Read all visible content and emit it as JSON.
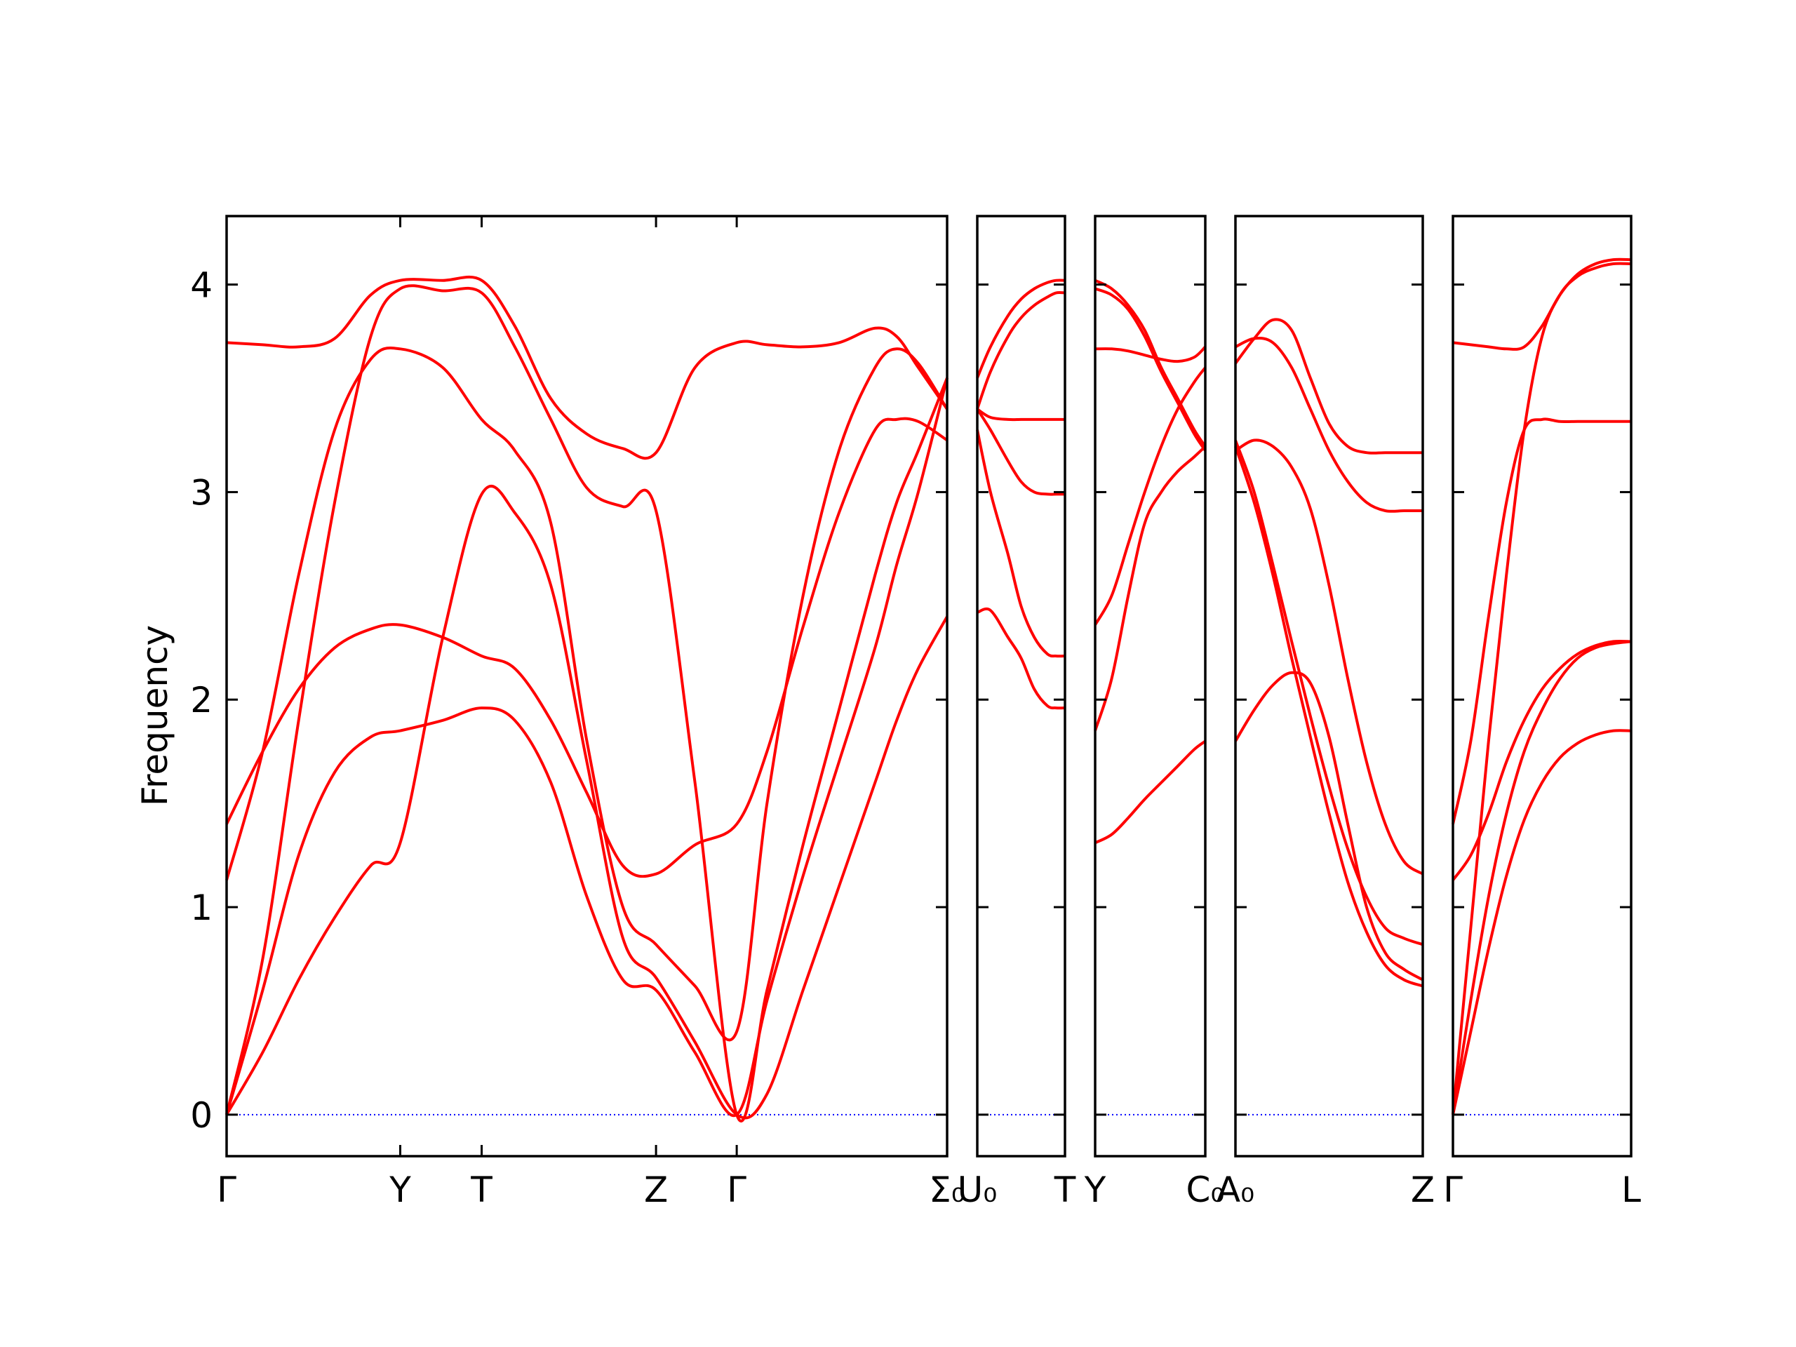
{
  "chart_data": {
    "type": "line",
    "ylabel": "Frequency",
    "ylim": [
      -0.2,
      4.33
    ],
    "yticks": [
      0,
      1,
      2,
      3,
      4
    ],
    "grid": false,
    "line_color": "#ff0000",
    "zero_line_color": "#0000ff",
    "panels": [
      {
        "xlim": [
          0,
          1
        ],
        "xticks": [
          {
            "x": 0,
            "label": "Γ"
          },
          {
            "x": 0.241,
            "label": "Y"
          },
          {
            "x": 0.354,
            "label": "T"
          },
          {
            "x": 0.596,
            "label": "Z"
          },
          {
            "x": 0.708,
            "label": "Γ"
          },
          {
            "x": 1,
            "label": "Σ₀"
          }
        ],
        "series": [
          {
            "x": [
              0,
              0.05,
              0.1,
              0.15,
              0.2,
              0.241,
              0.3,
              0.354,
              0.4,
              0.45,
              0.5,
              0.55,
              0.596,
              0.65,
              0.708,
              0.75,
              0.8,
              0.85,
              0.9,
              0.93,
              0.96,
              1
            ],
            "y": [
              3.72,
              3.71,
              3.7,
              3.74,
              3.95,
              4.02,
              4.02,
              4.02,
              3.8,
              3.45,
              3.28,
              3.21,
              3.19,
              3.6,
              3.72,
              3.71,
              3.7,
              3.72,
              3.79,
              3.75,
              3.6,
              3.4
            ]
          },
          {
            "x": [
              0,
              0.05,
              0.1,
              0.15,
              0.2,
              0.241,
              0.3,
              0.354,
              0.4,
              0.45,
              0.5,
              0.55,
              0.596,
              0.65,
              0.708,
              0.75,
              0.8,
              0.85,
              0.9,
              0.93,
              0.96,
              1
            ],
            "y": [
              0,
              0.75,
              1.9,
              2.95,
              3.75,
              3.98,
              3.97,
              3.96,
              3.7,
              3.35,
              3.02,
              2.93,
              2.91,
              1.6,
              0,
              0.6,
              1.3,
              1.95,
              2.6,
              2.95,
              3.2,
              3.55
            ]
          },
          {
            "x": [
              0,
              0.05,
              0.1,
              0.15,
              0.2,
              0.241,
              0.3,
              0.354,
              0.4,
              0.45,
              0.5,
              0.55,
              0.596,
              0.65,
              0.708,
              0.75,
              0.8,
              0.85,
              0.9,
              0.93,
              0.96,
              1
            ],
            "y": [
              1.13,
              1.75,
              2.6,
              3.3,
              3.64,
              3.69,
              3.6,
              3.35,
              3.2,
              2.85,
              1.8,
              1.0,
              0.82,
              0.62,
              0.4,
              1.5,
              2.5,
              3.2,
              3.6,
              3.69,
              3.62,
              3.4
            ]
          },
          {
            "x": [
              0,
              0.05,
              0.1,
              0.15,
              0.2,
              0.241,
              0.3,
              0.354,
              0.4,
              0.45,
              0.5,
              0.55,
              0.596,
              0.65,
              0.708,
              0.75,
              0.8,
              0.85,
              0.9,
              0.93,
              0.96,
              1
            ],
            "y": [
              1.4,
              1.75,
              2.05,
              2.25,
              2.34,
              2.36,
              2.3,
              2.21,
              2.15,
              1.9,
              1.55,
              1.2,
              1.16,
              1.3,
              1.4,
              1.75,
              2.35,
              2.9,
              3.3,
              3.35,
              3.34,
              3.25
            ]
          },
          {
            "x": [
              0,
              0.05,
              0.1,
              0.15,
              0.2,
              0.241,
              0.3,
              0.354,
              0.4,
              0.45,
              0.5,
              0.55,
              0.596,
              0.65,
              0.708,
              0.75,
              0.8,
              0.85,
              0.9,
              0.93,
              0.96,
              1
            ],
            "y": [
              0,
              0.6,
              1.25,
              1.65,
              1.82,
              1.85,
              1.9,
              1.96,
              1.9,
              1.6,
              1.05,
              0.65,
              0.6,
              0.3,
              0,
              0.55,
              1.15,
              1.7,
              2.25,
              2.65,
              3.0,
              3.55
            ]
          },
          {
            "x": [
              0,
              0.05,
              0.1,
              0.15,
              0.2,
              0.241,
              0.3,
              0.354,
              0.4,
              0.45,
              0.5,
              0.55,
              0.596,
              0.65,
              0.708,
              0.75,
              0.8,
              0.85,
              0.9,
              0.93,
              0.96,
              1
            ],
            "y": [
              0,
              0.3,
              0.65,
              0.95,
              1.2,
              1.31,
              2.3,
              2.99,
              2.9,
              2.55,
              1.7,
              0.85,
              0.66,
              0.35,
              0,
              0.1,
              0.6,
              1.1,
              1.6,
              1.9,
              2.15,
              2.4
            ]
          }
        ]
      },
      {
        "xlim": [
          0,
          1
        ],
        "xticks": [
          {
            "x": 0,
            "label": "U₀"
          },
          {
            "x": 1,
            "label": "T"
          }
        ],
        "series": [
          {
            "x": [
              0,
              0.15,
              0.35,
              0.5,
              0.65,
              0.8,
              0.9,
              1
            ],
            "y": [
              3.55,
              3.7,
              3.85,
              3.93,
              3.98,
              4.01,
              4.02,
              4.02
            ]
          },
          {
            "x": [
              0,
              0.15,
              0.35,
              0.5,
              0.65,
              0.8,
              0.9,
              1
            ],
            "y": [
              3.4,
              3.58,
              3.75,
              3.84,
              3.9,
              3.94,
              3.96,
              3.96
            ]
          },
          {
            "x": [
              0,
              0.15,
              0.35,
              0.5,
              0.65,
              0.8,
              0.9,
              1
            ],
            "y": [
              3.4,
              3.36,
              3.35,
              3.35,
              3.35,
              3.35,
              3.35,
              3.35
            ]
          },
          {
            "x": [
              0,
              0.15,
              0.35,
              0.5,
              0.65,
              0.8,
              0.9,
              1
            ],
            "y": [
              3.4,
              3.3,
              3.15,
              3.05,
              3.0,
              2.99,
              2.99,
              2.99
            ]
          },
          {
            "x": [
              0,
              0.15,
              0.35,
              0.5,
              0.65,
              0.8,
              0.9,
              1
            ],
            "y": [
              3.3,
              3.0,
              2.7,
              2.45,
              2.3,
              2.22,
              2.21,
              2.21
            ]
          },
          {
            "x": [
              0,
              0.15,
              0.35,
              0.5,
              0.65,
              0.8,
              0.9,
              1
            ],
            "y": [
              2.42,
              2.43,
              2.3,
              2.2,
              2.05,
              1.97,
              1.96,
              1.96
            ]
          }
        ]
      },
      {
        "xlim": [
          0,
          1
        ],
        "xticks": [
          {
            "x": 0,
            "label": "Y"
          },
          {
            "x": 1,
            "label": "C₀"
          }
        ],
        "series": [
          {
            "x": [
              0,
              0.15,
              0.3,
              0.45,
              0.6,
              0.75,
              0.9,
              1
            ],
            "y": [
              4.02,
              3.98,
              3.9,
              3.78,
              3.6,
              3.45,
              3.3,
              3.22
            ]
          },
          {
            "x": [
              0,
              0.15,
              0.3,
              0.45,
              0.6,
              0.75,
              0.9,
              1
            ],
            "y": [
              3.98,
              3.95,
              3.88,
              3.75,
              3.58,
              3.43,
              3.28,
              3.2
            ]
          },
          {
            "x": [
              0,
              0.15,
              0.3,
              0.45,
              0.6,
              0.75,
              0.9,
              1
            ],
            "y": [
              3.69,
              3.69,
              3.68,
              3.66,
              3.64,
              3.63,
              3.65,
              3.7
            ]
          },
          {
            "x": [
              0,
              0.15,
              0.3,
              0.45,
              0.6,
              0.75,
              0.9,
              1
            ],
            "y": [
              2.36,
              2.5,
              2.75,
              3.0,
              3.22,
              3.4,
              3.53,
              3.6
            ]
          },
          {
            "x": [
              0,
              0.15,
              0.3,
              0.45,
              0.6,
              0.75,
              0.9,
              1
            ],
            "y": [
              1.85,
              2.1,
              2.5,
              2.85,
              3.0,
              3.1,
              3.17,
              3.22
            ]
          },
          {
            "x": [
              0,
              0.15,
              0.3,
              0.45,
              0.6,
              0.75,
              0.9,
              1
            ],
            "y": [
              1.31,
              1.35,
              1.43,
              1.52,
              1.6,
              1.68,
              1.76,
              1.8
            ]
          }
        ]
      },
      {
        "xlim": [
          0,
          1
        ],
        "xticks": [
          {
            "x": 0,
            "label": "A₀"
          },
          {
            "x": 1,
            "label": "Z"
          }
        ],
        "series": [
          {
            "x": [
              0,
              0.1,
              0.2,
              0.3,
              0.4,
              0.5,
              0.6,
              0.7,
              0.8,
              0.9,
              1
            ],
            "y": [
              3.62,
              3.74,
              3.83,
              3.78,
              3.55,
              3.33,
              3.22,
              3.19,
              3.19,
              3.19,
              3.19
            ]
          },
          {
            "x": [
              0,
              0.1,
              0.2,
              0.3,
              0.4,
              0.5,
              0.6,
              0.7,
              0.8,
              0.9,
              1
            ],
            "y": [
              3.7,
              3.74,
              3.72,
              3.6,
              3.4,
              3.2,
              3.05,
              2.95,
              2.91,
              2.91,
              2.91
            ]
          },
          {
            "x": [
              0,
              0.1,
              0.2,
              0.3,
              0.4,
              0.5,
              0.6,
              0.7,
              0.8,
              0.9,
              1
            ],
            "y": [
              3.2,
              3.25,
              3.22,
              3.12,
              2.92,
              2.55,
              2.1,
              1.7,
              1.4,
              1.22,
              1.16
            ]
          },
          {
            "x": [
              0,
              0.1,
              0.2,
              0.3,
              0.4,
              0.5,
              0.6,
              0.7,
              0.8,
              0.9,
              1
            ],
            "y": [
              3.25,
              3.0,
              2.65,
              2.28,
              1.92,
              1.58,
              1.28,
              1.05,
              0.9,
              0.85,
              0.82
            ]
          },
          {
            "x": [
              0,
              0.1,
              0.2,
              0.3,
              0.4,
              0.5,
              0.6,
              0.7,
              0.8,
              0.9,
              1
            ],
            "y": [
              3.22,
              2.95,
              2.6,
              2.2,
              1.82,
              1.45,
              1.12,
              0.88,
              0.72,
              0.65,
              0.62
            ]
          },
          {
            "x": [
              0,
              0.1,
              0.2,
              0.3,
              0.4,
              0.5,
              0.6,
              0.7,
              0.8,
              0.9,
              1
            ],
            "y": [
              1.8,
              1.95,
              2.07,
              2.13,
              2.08,
              1.82,
              1.4,
              1.0,
              0.78,
              0.7,
              0.65
            ]
          }
        ]
      },
      {
        "xlim": [
          0,
          1
        ],
        "xticks": [
          {
            "x": 0,
            "label": "Γ"
          },
          {
            "x": 1,
            "label": "L"
          }
        ],
        "series": [
          {
            "x": [
              0,
              0.1,
              0.2,
              0.3,
              0.4,
              0.5,
              0.6,
              0.7,
              0.8,
              0.9,
              1
            ],
            "y": [
              3.72,
              3.71,
              3.7,
              3.69,
              3.7,
              3.8,
              3.95,
              4.05,
              4.1,
              4.12,
              4.12
            ]
          },
          {
            "x": [
              0,
              0.1,
              0.2,
              0.3,
              0.4,
              0.5,
              0.6,
              0.7,
              0.8,
              0.9,
              1
            ],
            "y": [
              0,
              0.9,
              1.8,
              2.6,
              3.3,
              3.75,
              3.95,
              4.04,
              4.08,
              4.1,
              4.1
            ]
          },
          {
            "x": [
              0,
              0.1,
              0.2,
              0.3,
              0.4,
              0.5,
              0.6,
              0.7,
              0.8,
              0.9,
              1
            ],
            "y": [
              1.4,
              1.8,
              2.4,
              2.95,
              3.3,
              3.35,
              3.34,
              3.34,
              3.34,
              3.34,
              3.34
            ]
          },
          {
            "x": [
              0,
              0.1,
              0.2,
              0.3,
              0.4,
              0.5,
              0.6,
              0.7,
              0.8,
              0.9,
              1
            ],
            "y": [
              1.13,
              1.25,
              1.45,
              1.7,
              1.9,
              2.05,
              2.15,
              2.22,
              2.26,
              2.28,
              2.28
            ]
          },
          {
            "x": [
              0,
              0.1,
              0.2,
              0.3,
              0.4,
              0.5,
              0.6,
              0.7,
              0.8,
              0.9,
              1
            ],
            "y": [
              0,
              0.55,
              1.05,
              1.45,
              1.75,
              1.95,
              2.1,
              2.2,
              2.25,
              2.27,
              2.28
            ]
          },
          {
            "x": [
              0,
              0.1,
              0.2,
              0.3,
              0.4,
              0.5,
              0.6,
              0.7,
              0.8,
              0.9,
              1
            ],
            "y": [
              0,
              0.4,
              0.8,
              1.15,
              1.42,
              1.6,
              1.72,
              1.79,
              1.83,
              1.85,
              1.85
            ]
          }
        ]
      }
    ]
  }
}
